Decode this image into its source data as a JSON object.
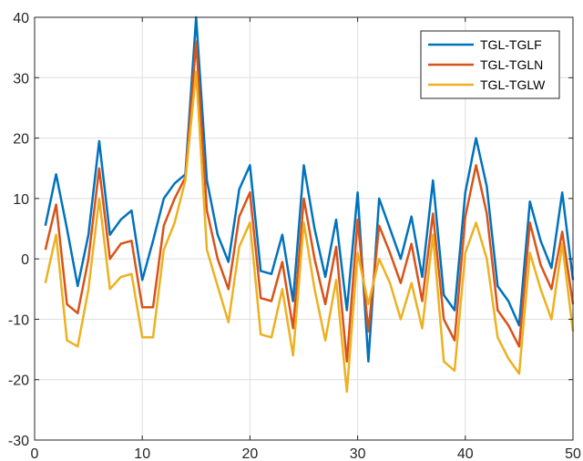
{
  "chart_data": {
    "type": "line",
    "title": "",
    "xlabel": "",
    "ylabel": "",
    "xlim": [
      0,
      50
    ],
    "ylim": [
      -30,
      40
    ],
    "xticks": [
      0,
      10,
      20,
      30,
      40,
      50
    ],
    "yticks": [
      -30,
      -20,
      -10,
      0,
      10,
      20,
      30,
      40
    ],
    "grid": true,
    "legend_position": "top-right",
    "x": [
      1,
      2,
      3,
      4,
      5,
      6,
      7,
      8,
      9,
      10,
      11,
      12,
      13,
      14,
      15,
      16,
      17,
      18,
      19,
      20,
      21,
      22,
      23,
      24,
      25,
      26,
      27,
      28,
      29,
      30,
      31,
      32,
      33,
      34,
      35,
      36,
      37,
      38,
      39,
      40,
      41,
      42,
      43,
      44,
      45,
      46,
      47,
      48,
      49,
      50
    ],
    "series": [
      {
        "name": "TGL-TGLF",
        "color": "#0072BD",
        "values": [
          5.5,
          14,
          5,
          -4.5,
          4,
          19.5,
          4,
          6.5,
          8,
          -3.5,
          3,
          10,
          12.5,
          14,
          40,
          13,
          4,
          -0.5,
          11.5,
          15.5,
          -2,
          -2.5,
          4,
          -7,
          15.5,
          5,
          -3,
          6.5,
          -8.5,
          11,
          -17,
          10,
          5,
          0,
          7,
          -3,
          13,
          -6,
          -8.5,
          11,
          20,
          12,
          -4.5,
          -7,
          -11,
          9.5,
          3,
          -1.5,
          11,
          -3.5
        ]
      },
      {
        "name": "TGL-TGLN",
        "color": "#D95319",
        "values": [
          1.5,
          9,
          -7.5,
          -9,
          0,
          15,
          0,
          2.5,
          3,
          -8,
          -8,
          5.5,
          10,
          13.5,
          36,
          8,
          0,
          -5,
          7,
          11,
          -6.5,
          -7,
          -0.5,
          -11.5,
          10,
          0,
          -7.5,
          2,
          -17,
          6.5,
          -12,
          5.5,
          1,
          -4,
          2.5,
          -7,
          7.5,
          -10,
          -13.5,
          7,
          15.5,
          7.5,
          -8.5,
          -11,
          -14.5,
          6,
          -1,
          -5,
          4.5,
          -7.5
        ]
      },
      {
        "name": "TGL-TGLW",
        "color": "#EDB120",
        "values": [
          -4,
          4,
          -13.5,
          -14.5,
          -5,
          10,
          -5,
          -3,
          -2.5,
          -13,
          -13,
          1.5,
          6,
          13,
          31,
          1.5,
          -4.5,
          -10.5,
          2,
          6,
          -12.5,
          -13,
          -5,
          -16,
          6,
          -5,
          -13.5,
          -3.5,
          -22,
          1,
          -7.5,
          0,
          -4,
          -10,
          -4,
          -11.5,
          4,
          -17,
          -18.5,
          1,
          6,
          0,
          -13,
          -16.5,
          -19,
          1,
          -5,
          -10,
          2.5,
          -12
        ]
      }
    ]
  }
}
